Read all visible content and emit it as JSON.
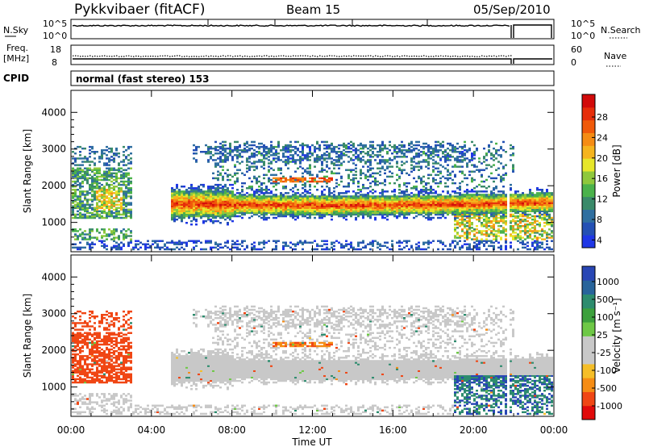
{
  "header": {
    "title": "Pykkvibaer (fitACF)",
    "beam": "Beam 15",
    "date": "05/Sep/2010"
  },
  "strips": {
    "nsky_label": "N.Sky",
    "nsky_ticks": [
      "10^5",
      "10^0"
    ],
    "nsearch_label": "N.Search",
    "nsearch_ticks": [
      "10^5",
      "10^0"
    ],
    "freq_label": "Freq.",
    "freq_unit": "[MHz]",
    "freq_ticks": [
      "18",
      "8"
    ],
    "nave_label": "Nave",
    "nave_ticks": [
      "60",
      "0"
    ],
    "cpid_label": "CPID",
    "cpid_text": "normal (fast stereo) 153"
  },
  "colors": {
    "scale": [
      "#1f37e6",
      "#2450b4",
      "#2f6fa0",
      "#3a8a6a",
      "#4bb24b",
      "#8fc83c",
      "#e6e62a",
      "#f5b41e",
      "#f58c14",
      "#f05a0a",
      "#e62d0a",
      "#d20a0a"
    ],
    "velocity": [
      "#e10a0a",
      "#f04614",
      "#f58c14",
      "#f5be28",
      "#c8c8c8",
      "#c8c8c8",
      "#6ec846",
      "#3ca03c",
      "#2d8c6e",
      "#28649b",
      "#2846b4"
    ]
  },
  "chart_data": [
    {
      "type": "heatmap",
      "quantity": "Power",
      "ylabel": "Slant Range [km]",
      "ylim": [
        200,
        4600
      ],
      "yticks": [
        "4000",
        "3000",
        "2000",
        "1000"
      ],
      "xlim": [
        "00:00",
        "24:00"
      ],
      "colorbar_label": "Power [dB]",
      "colorbar_ticks": [
        "28",
        "24",
        "20",
        "16",
        "12",
        "8",
        "4"
      ],
      "colorbar_range": [
        0,
        30
      ]
    },
    {
      "type": "heatmap",
      "quantity": "Velocity",
      "ylabel": "Slant Range [km]",
      "ylim": [
        200,
        4600
      ],
      "yticks": [
        "4000",
        "3000",
        "2000",
        "1000"
      ],
      "xlabel": "Time UT",
      "xticks": [
        "00:00",
        "04:00",
        "08:00",
        "12:00",
        "16:00",
        "20:00",
        "00:00"
      ],
      "colorbar_label": "Velocity [m s⁻¹]",
      "colorbar_ticks": [
        "1000",
        "500",
        "100",
        "25",
        "-25",
        "-100",
        "-500",
        "-1000"
      ]
    }
  ]
}
